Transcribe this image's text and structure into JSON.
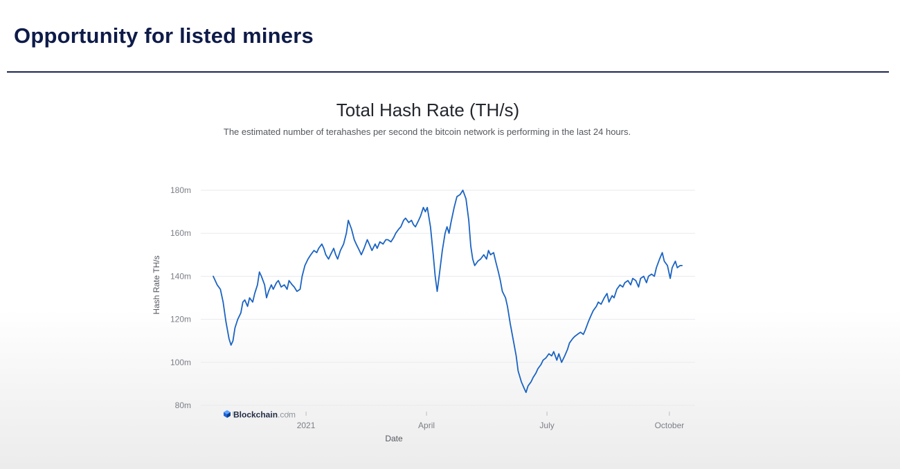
{
  "slide": {
    "title": "Opportunity for listed miners"
  },
  "colors": {
    "title": "#0e1b49",
    "line": "#1a63c2",
    "grid": "#e8eaee"
  },
  "chart_data": {
    "type": "line",
    "title": "Total Hash Rate (TH/s)",
    "subtitle": "The estimated number of terahashes per second the bitcoin network is performing in the last 24 hours.",
    "xlabel": "Date",
    "ylabel": "Hash Rate TH/s",
    "ylim": [
      80,
      180
    ],
    "xlim": [
      0,
      12.2
    ],
    "y_ticks": [
      {
        "value": 80,
        "label": "80m"
      },
      {
        "value": 100,
        "label": "100m"
      },
      {
        "value": 120,
        "label": "120m"
      },
      {
        "value": 140,
        "label": "140m"
      },
      {
        "value": 160,
        "label": "160m"
      },
      {
        "value": 180,
        "label": "180m"
      }
    ],
    "x_ticks": [
      {
        "value": 0.5,
        "label": ""
      },
      {
        "value": 1.9,
        "label": ""
      },
      {
        "value": 2.35,
        "label": "2021"
      },
      {
        "value": 5.4,
        "label": "April"
      },
      {
        "value": 8.45,
        "label": "July"
      },
      {
        "value": 11.55,
        "label": "October"
      }
    ],
    "watermark": {
      "brand": "Blockchain",
      "suffix": ".com"
    },
    "series": [
      {
        "name": "Hash Rate",
        "unit": "TH/s (millions)",
        "points": [
          [
            0.0,
            140
          ],
          [
            0.1,
            136
          ],
          [
            0.18,
            134
          ],
          [
            0.25,
            128
          ],
          [
            0.32,
            119
          ],
          [
            0.4,
            111
          ],
          [
            0.45,
            108
          ],
          [
            0.5,
            110
          ],
          [
            0.55,
            116
          ],
          [
            0.62,
            120
          ],
          [
            0.7,
            123
          ],
          [
            0.75,
            128
          ],
          [
            0.8,
            129
          ],
          [
            0.87,
            126
          ],
          [
            0.92,
            130
          ],
          [
            1.0,
            128
          ],
          [
            1.05,
            132
          ],
          [
            1.12,
            136
          ],
          [
            1.17,
            142
          ],
          [
            1.22,
            140
          ],
          [
            1.3,
            136
          ],
          [
            1.35,
            130
          ],
          [
            1.4,
            133
          ],
          [
            1.47,
            136
          ],
          [
            1.52,
            134
          ],
          [
            1.6,
            137
          ],
          [
            1.65,
            138
          ],
          [
            1.72,
            135
          ],
          [
            1.8,
            136
          ],
          [
            1.87,
            134
          ],
          [
            1.92,
            138
          ],
          [
            2.0,
            136
          ],
          [
            2.05,
            135
          ],
          [
            2.12,
            133
          ],
          [
            2.2,
            134
          ],
          [
            2.25,
            140
          ],
          [
            2.32,
            145
          ],
          [
            2.4,
            148
          ],
          [
            2.47,
            150
          ],
          [
            2.55,
            152
          ],
          [
            2.62,
            151
          ],
          [
            2.67,
            153
          ],
          [
            2.75,
            155
          ],
          [
            2.8,
            153
          ],
          [
            2.85,
            150
          ],
          [
            2.92,
            148
          ],
          [
            2.97,
            150
          ],
          [
            3.05,
            153
          ],
          [
            3.1,
            150
          ],
          [
            3.15,
            148
          ],
          [
            3.22,
            152
          ],
          [
            3.3,
            155
          ],
          [
            3.37,
            160
          ],
          [
            3.42,
            166
          ],
          [
            3.5,
            162
          ],
          [
            3.57,
            157
          ],
          [
            3.62,
            155
          ],
          [
            3.7,
            152
          ],
          [
            3.75,
            150
          ],
          [
            3.82,
            153
          ],
          [
            3.9,
            157
          ],
          [
            3.95,
            155
          ],
          [
            4.02,
            152
          ],
          [
            4.1,
            155
          ],
          [
            4.15,
            153
          ],
          [
            4.22,
            156
          ],
          [
            4.3,
            155
          ],
          [
            4.37,
            157
          ],
          [
            4.42,
            157
          ],
          [
            4.5,
            156
          ],
          [
            4.57,
            158
          ],
          [
            4.62,
            160
          ],
          [
            4.7,
            162
          ],
          [
            4.75,
            163
          ],
          [
            4.82,
            166
          ],
          [
            4.87,
            167
          ],
          [
            4.95,
            165
          ],
          [
            5.02,
            166
          ],
          [
            5.07,
            164
          ],
          [
            5.12,
            163
          ],
          [
            5.2,
            166
          ],
          [
            5.25,
            168
          ],
          [
            5.32,
            172
          ],
          [
            5.37,
            170
          ],
          [
            5.42,
            172
          ],
          [
            5.5,
            163
          ],
          [
            5.57,
            150
          ],
          [
            5.62,
            140
          ],
          [
            5.67,
            133
          ],
          [
            5.72,
            140
          ],
          [
            5.8,
            152
          ],
          [
            5.87,
            160
          ],
          [
            5.92,
            163
          ],
          [
            5.97,
            160
          ],
          [
            6.02,
            165
          ],
          [
            6.1,
            172
          ],
          [
            6.17,
            177
          ],
          [
            6.25,
            178
          ],
          [
            6.32,
            180
          ],
          [
            6.4,
            176
          ],
          [
            6.47,
            166
          ],
          [
            6.52,
            154
          ],
          [
            6.57,
            148
          ],
          [
            6.62,
            145
          ],
          [
            6.7,
            147
          ],
          [
            6.77,
            148
          ],
          [
            6.85,
            150
          ],
          [
            6.92,
            148
          ],
          [
            6.97,
            152
          ],
          [
            7.02,
            150
          ],
          [
            7.1,
            151
          ],
          [
            7.15,
            147
          ],
          [
            7.22,
            142
          ],
          [
            7.27,
            138
          ],
          [
            7.32,
            133
          ],
          [
            7.4,
            130
          ],
          [
            7.45,
            126
          ],
          [
            7.52,
            118
          ],
          [
            7.6,
            110
          ],
          [
            7.67,
            103
          ],
          [
            7.72,
            96
          ],
          [
            7.8,
            91
          ],
          [
            7.87,
            88
          ],
          [
            7.92,
            86
          ],
          [
            7.97,
            89
          ],
          [
            8.05,
            91
          ],
          [
            8.1,
            93
          ],
          [
            8.17,
            95
          ],
          [
            8.22,
            97
          ],
          [
            8.3,
            99
          ],
          [
            8.35,
            101
          ],
          [
            8.42,
            102
          ],
          [
            8.5,
            104
          ],
          [
            8.57,
            103
          ],
          [
            8.62,
            105
          ],
          [
            8.7,
            101
          ],
          [
            8.75,
            104
          ],
          [
            8.82,
            100
          ],
          [
            8.9,
            103
          ],
          [
            8.97,
            106
          ],
          [
            9.02,
            109
          ],
          [
            9.1,
            111
          ],
          [
            9.15,
            112
          ],
          [
            9.22,
            113
          ],
          [
            9.3,
            114
          ],
          [
            9.37,
            113
          ],
          [
            9.42,
            115
          ],
          [
            9.5,
            119
          ],
          [
            9.57,
            122
          ],
          [
            9.62,
            124
          ],
          [
            9.7,
            126
          ],
          [
            9.75,
            128
          ],
          [
            9.82,
            127
          ],
          [
            9.9,
            130
          ],
          [
            9.97,
            132
          ],
          [
            10.02,
            128
          ],
          [
            10.1,
            131
          ],
          [
            10.15,
            130
          ],
          [
            10.22,
            134
          ],
          [
            10.3,
            136
          ],
          [
            10.37,
            135
          ],
          [
            10.42,
            137
          ],
          [
            10.5,
            138
          ],
          [
            10.57,
            136
          ],
          [
            10.62,
            139
          ],
          [
            10.7,
            138
          ],
          [
            10.77,
            135
          ],
          [
            10.82,
            139
          ],
          [
            10.9,
            140
          ],
          [
            10.97,
            137
          ],
          [
            11.02,
            140
          ],
          [
            11.1,
            141
          ],
          [
            11.17,
            140
          ],
          [
            11.22,
            144
          ],
          [
            11.3,
            148
          ],
          [
            11.37,
            151
          ],
          [
            11.42,
            147
          ],
          [
            11.5,
            145
          ],
          [
            11.57,
            139
          ],
          [
            11.62,
            144
          ],
          [
            11.7,
            147
          ],
          [
            11.75,
            144
          ],
          [
            11.82,
            145
          ],
          [
            11.87,
            145
          ]
        ]
      }
    ]
  }
}
